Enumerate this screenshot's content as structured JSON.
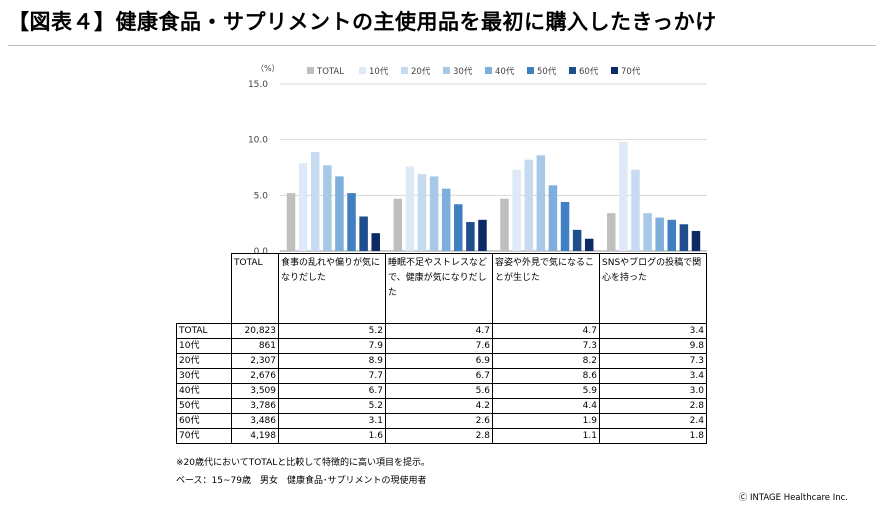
{
  "title": "【図表４】健康食品・サプリメントの主使用品を最初に購入したきっかけ",
  "note": "※20歳代においてTOTALと比較して特徴的に高い項目を提示。",
  "base": "ベース：15~79歳　男女　健康食品･サプリメントの現使用者",
  "copyright": "Ⓒ INTAGE Healthcare Inc.",
  "chart_data": {
    "type": "bar",
    "unit_label": "（%）",
    "y_ticks": [
      "15.0",
      "10.0",
      "5.0",
      "0.0"
    ],
    "ylim": [
      0,
      15
    ],
    "categories": [
      "食事の乱れや偏りが気になりだした",
      "睡眠不足やストレスなどで、健康が気になりだした",
      "容姿や外見で気になることが生じた",
      "SNSやブログの投稿で関心を持った"
    ],
    "series": [
      {
        "name": "TOTAL",
        "color": "#bfbfbf",
        "n": "20,823",
        "values": [
          5.2,
          4.7,
          4.7,
          3.4
        ]
      },
      {
        "name": "10代",
        "color": "#dde9f6",
        "n": "861",
        "values": [
          7.9,
          7.6,
          7.3,
          9.8
        ]
      },
      {
        "name": "20代",
        "color": "#c6daf0",
        "n": "2,307",
        "values": [
          8.9,
          6.9,
          8.2,
          7.3
        ]
      },
      {
        "name": "30代",
        "color": "#a8c8e8",
        "n": "2,676",
        "values": [
          7.7,
          6.7,
          8.6,
          3.4
        ]
      },
      {
        "name": "40代",
        "color": "#7eaedb",
        "n": "3,509",
        "values": [
          6.7,
          5.6,
          5.9,
          3.0
        ]
      },
      {
        "name": "50代",
        "color": "#3f7fc2",
        "n": "3,786",
        "values": [
          5.2,
          4.2,
          4.4,
          2.8
        ]
      },
      {
        "name": "60代",
        "color": "#1f4e8c",
        "n": "3,486",
        "values": [
          3.1,
          2.6,
          1.9,
          2.4
        ]
      },
      {
        "name": "70代",
        "color": "#0b2a66",
        "n": "4,198",
        "values": [
          1.6,
          2.8,
          1.1,
          1.8
        ]
      }
    ]
  }
}
